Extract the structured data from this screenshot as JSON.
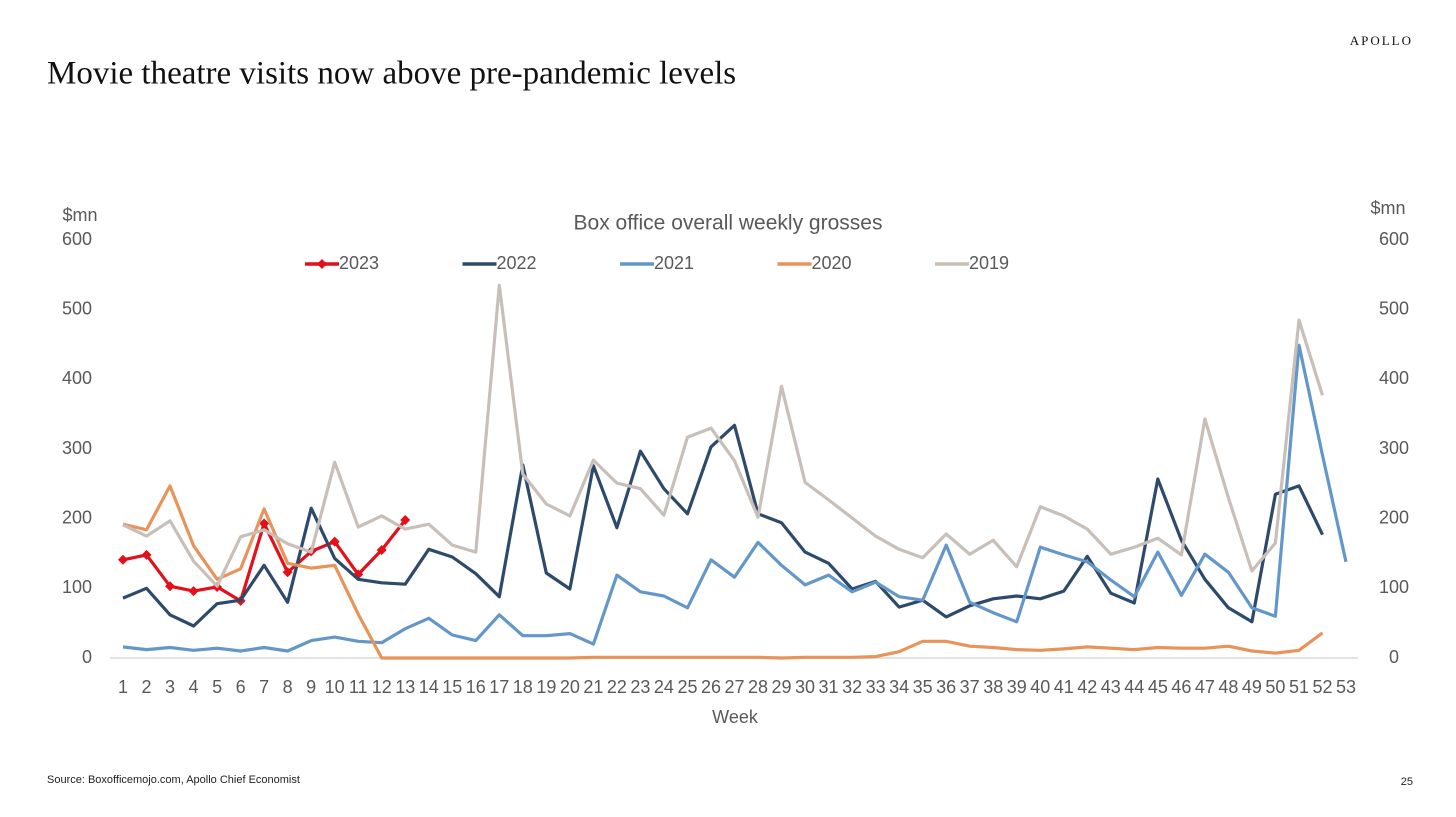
{
  "brand": "APOLLO",
  "title": "Movie theatre visits now above pre-pandemic levels",
  "source": "Source: Boxofficemojo.com, Apollo Chief Economist",
  "page_number": "25",
  "chart_data": {
    "type": "line",
    "title": "Box office overall weekly grosses",
    "y_label": "$mn",
    "y2_label": "$mn",
    "x_label": "Week",
    "categories": [
      1,
      2,
      3,
      4,
      5,
      6,
      7,
      8,
      9,
      10,
      11,
      12,
      13,
      14,
      15,
      16,
      17,
      18,
      19,
      20,
      21,
      22,
      23,
      24,
      25,
      26,
      27,
      28,
      29,
      30,
      31,
      32,
      33,
      34,
      35,
      36,
      37,
      38,
      39,
      40,
      41,
      42,
      43,
      44,
      45,
      46,
      47,
      48,
      49,
      50,
      51,
      52,
      53
    ],
    "ylim": [
      0,
      600
    ],
    "yticks": [
      0,
      100,
      200,
      300,
      400,
      500,
      600
    ],
    "y2lim": [
      0,
      600
    ],
    "y2ticks": [
      0,
      100,
      200,
      300,
      400,
      500,
      600
    ],
    "legend": "top",
    "series": [
      {
        "name": "2023",
        "color": "#e3101a",
        "marker": "diamond",
        "values": [
          141,
          148,
          103,
          96,
          102,
          82,
          193,
          123,
          153,
          167,
          120,
          155,
          198,
          null,
          null,
          null,
          null,
          null,
          null,
          null,
          null,
          null,
          null,
          null,
          null,
          null,
          null,
          null,
          null,
          null,
          null,
          null,
          null,
          null,
          null,
          null,
          null,
          null,
          null,
          null,
          null,
          null,
          null,
          null,
          null,
          null,
          null,
          null,
          null,
          null,
          null,
          null,
          null
        ]
      },
      {
        "name": "2022",
        "color": "#2e4a6b",
        "values": [
          86,
          100,
          62,
          46,
          78,
          83,
          133,
          80,
          215,
          143,
          113,
          108,
          106,
          156,
          145,
          121,
          88,
          277,
          122,
          99,
          276,
          187,
          297,
          243,
          207,
          303,
          334,
          207,
          194,
          152,
          136,
          99,
          110,
          73,
          83,
          59,
          75,
          85,
          89,
          85,
          96,
          146,
          93,
          79,
          257,
          169,
          113,
          72,
          52,
          235,
          247,
          177,
          null
        ]
      },
      {
        "name": "2021",
        "color": "#6497c9",
        "values": [
          16,
          12,
          15,
          11,
          14,
          10,
          15,
          10,
          25,
          30,
          24,
          22,
          42,
          57,
          33,
          25,
          62,
          32,
          32,
          35,
          20,
          119,
          95,
          89,
          72,
          141,
          116,
          166,
          133,
          105,
          119,
          95,
          109,
          88,
          83,
          162,
          80,
          65,
          52,
          159,
          148,
          138,
          112,
          88,
          152,
          90,
          149,
          123,
          72,
          60,
          449,
          291,
          138
        ]
      },
      {
        "name": "2020",
        "color": "#e8935a",
        "values": [
          192,
          184,
          247,
          161,
          113,
          128,
          214,
          136,
          129,
          133,
          63,
          0,
          0,
          0,
          0,
          0,
          0,
          0,
          0,
          0,
          1,
          1,
          1,
          1,
          1,
          1,
          1,
          1,
          0,
          1,
          1,
          1,
          2,
          9,
          24,
          24,
          17,
          15,
          12,
          11,
          13,
          16,
          14,
          12,
          15,
          14,
          14,
          17,
          10,
          7,
          11,
          36,
          null
        ]
      },
      {
        "name": "2019",
        "color": "#c7bfb8",
        "values": [
          191,
          175,
          197,
          139,
          103,
          174,
          184,
          164,
          152,
          281,
          188,
          204,
          185,
          192,
          162,
          152,
          535,
          264,
          221,
          204,
          284,
          251,
          243,
          205,
          317,
          330,
          283,
          202,
          390,
          252,
          227,
          201,
          175,
          156,
          144,
          178,
          149,
          169,
          131,
          217,
          204,
          185,
          149,
          159,
          172,
          148,
          343,
          230,
          125,
          165,
          485,
          377,
          null
        ]
      }
    ]
  }
}
